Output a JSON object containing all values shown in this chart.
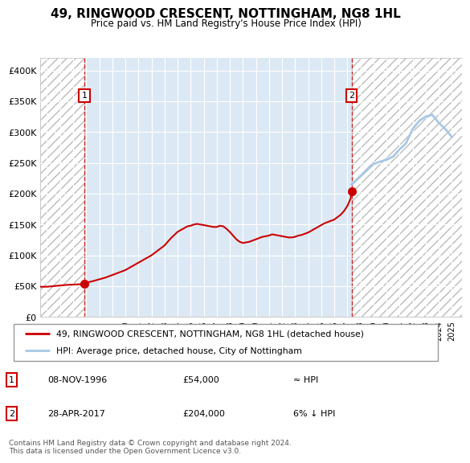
{
  "title": "49, RINGWOOD CRESCENT, NOTTINGHAM, NG8 1HL",
  "subtitle": "Price paid vs. HM Land Registry's House Price Index (HPI)",
  "hpi_color": "#a8c8e8",
  "price_color": "#cc0000",
  "sale1_date": 1996.86,
  "sale1_price": 54000,
  "sale2_date": 2017.33,
  "sale2_price": 204000,
  "ylim": [
    0,
    420000
  ],
  "xlim": [
    1993.5,
    2025.8
  ],
  "yticks": [
    0,
    50000,
    100000,
    150000,
    200000,
    250000,
    300000,
    350000,
    400000
  ],
  "ytick_labels": [
    "£0",
    "£50K",
    "£100K",
    "£150K",
    "£200K",
    "£250K",
    "£300K",
    "£350K",
    "£400K"
  ],
  "xticks": [
    1994,
    1995,
    1996,
    1997,
    1998,
    1999,
    2000,
    2001,
    2002,
    2003,
    2004,
    2005,
    2006,
    2007,
    2008,
    2009,
    2010,
    2011,
    2012,
    2013,
    2014,
    2015,
    2016,
    2017,
    2018,
    2019,
    2020,
    2021,
    2022,
    2023,
    2024,
    2025
  ],
  "legend_line1": "49, RINGWOOD CRESCENT, NOTTINGHAM, NG8 1HL (detached house)",
  "legend_line2": "HPI: Average price, detached house, City of Nottingham",
  "table_row1": [
    "1",
    "08-NOV-1996",
    "£54,000",
    "≈ HPI"
  ],
  "table_row2": [
    "2",
    "28-APR-2017",
    "£204,000",
    "6% ↓ HPI"
  ],
  "footnote": "Contains HM Land Registry data © Crown copyright and database right 2024.\nThis data is licensed under the Open Government Licence v3.0.",
  "plot_bg": "#dce9f5",
  "grid_color": "#ffffff",
  "hpi_years": [
    2017.33,
    2017.5,
    2018.0,
    2018.5,
    2019.0,
    2019.5,
    2020.0,
    2020.5,
    2021.0,
    2021.5,
    2022.0,
    2022.5,
    2023.0,
    2023.5,
    2024.0,
    2024.5,
    2025.0
  ],
  "hpi_values": [
    215000,
    218000,
    228000,
    238000,
    248000,
    252000,
    255000,
    260000,
    272000,
    282000,
    305000,
    318000,
    325000,
    328000,
    315000,
    305000,
    292000
  ],
  "price_years": [
    1993.5,
    1994.0,
    1994.5,
    1995.0,
    1995.5,
    1996.0,
    1996.5,
    1996.86,
    1997.0,
    1997.5,
    1998.0,
    1998.5,
    1999.0,
    1999.5,
    2000.0,
    2000.5,
    2001.0,
    2001.5,
    2002.0,
    2002.5,
    2003.0,
    2003.25,
    2003.5,
    2003.75,
    2004.0,
    2004.25,
    2004.5,
    2004.75,
    2005.0,
    2005.25,
    2005.5,
    2005.75,
    2006.0,
    2006.25,
    2006.5,
    2006.75,
    2007.0,
    2007.25,
    2007.5,
    2007.75,
    2008.0,
    2008.25,
    2008.5,
    2008.75,
    2009.0,
    2009.25,
    2009.5,
    2009.75,
    2010.0,
    2010.25,
    2010.5,
    2010.75,
    2011.0,
    2011.25,
    2011.5,
    2011.75,
    2012.0,
    2012.25,
    2012.5,
    2012.75,
    2013.0,
    2013.25,
    2013.5,
    2013.75,
    2014.0,
    2014.25,
    2014.5,
    2014.75,
    2015.0,
    2015.25,
    2015.5,
    2015.75,
    2016.0,
    2016.25,
    2016.5,
    2016.75,
    2017.0,
    2017.25,
    2017.33
  ],
  "price_values": [
    49000,
    49000,
    50000,
    51000,
    52000,
    52500,
    53000,
    54000,
    55500,
    58000,
    61000,
    64000,
    68000,
    72000,
    76000,
    82000,
    88000,
    94000,
    100000,
    108000,
    116000,
    122000,
    128000,
    133000,
    138000,
    141000,
    144000,
    147000,
    148000,
    150000,
    151000,
    150000,
    149000,
    148000,
    147000,
    146000,
    146000,
    148000,
    147000,
    143000,
    138000,
    132000,
    126000,
    122000,
    120000,
    121000,
    122000,
    124000,
    126000,
    128000,
    130000,
    131000,
    132000,
    134000,
    133000,
    132000,
    131000,
    130000,
    129000,
    129000,
    130000,
    132000,
    133000,
    135000,
    137000,
    140000,
    143000,
    146000,
    149000,
    152000,
    154000,
    156000,
    158000,
    162000,
    166000,
    172000,
    180000,
    192000,
    204000
  ]
}
